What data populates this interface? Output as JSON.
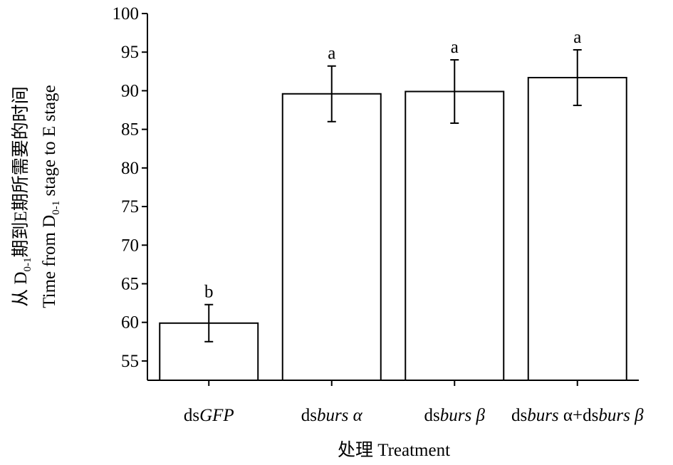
{
  "chart_data": {
    "type": "bar",
    "categories": [
      {
        "prefix": "ds",
        "italic": "GFP",
        "suffix": ""
      },
      {
        "prefix": "ds",
        "italic": "burs α",
        "suffix": ""
      },
      {
        "prefix": "ds",
        "italic": "burs β",
        "suffix": ""
      },
      {
        "prefix": "ds",
        "italic": "burs",
        "suffix": " α+ds",
        "italic2": "burs β"
      }
    ],
    "category_names": [
      "dsGFP",
      "dsburs α",
      "dsburs β",
      "dsburs α+dsburs β"
    ],
    "values": [
      59.9,
      89.6,
      89.9,
      91.7
    ],
    "errors": [
      2.4,
      3.6,
      4.1,
      3.6
    ],
    "significance": [
      "b",
      "a",
      "a",
      "a"
    ],
    "ylim": [
      52.5,
      100
    ],
    "yticks": [
      55,
      60,
      65,
      70,
      75,
      80,
      85,
      90,
      95,
      100
    ],
    "ylabel_cn": {
      "pre": "从 D",
      "sub": "0-1",
      "post": "期到E期所需要的时间"
    },
    "ylabel_en": {
      "pre": "Time from D",
      "sub": "0-1",
      "post": " stage to E stage"
    },
    "xlabel": "处理 Treatment",
    "bar_fill": "#ffffff",
    "bar_stroke": "#000000",
    "grid": false
  }
}
